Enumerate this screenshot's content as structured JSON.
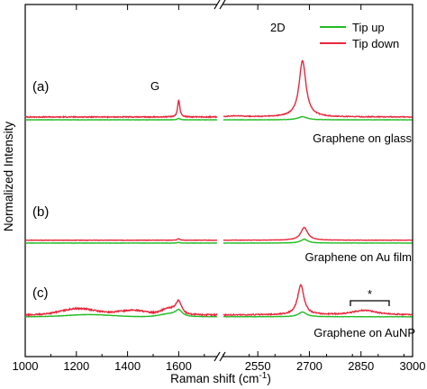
{
  "chart_data": {
    "type": "line",
    "xlabel": "Raman shift (cm",
    "xlabel_sup": "-1",
    "xlabel_tail": ")",
    "ylabel": "Normalized Intensity",
    "axis_break": true,
    "x_segments": [
      {
        "range": [
          1000,
          1750
        ],
        "ticks": [
          1000,
          1200,
          1400,
          1600
        ]
      },
      {
        "range": [
          2450,
          3000
        ],
        "ticks": [
          2550,
          2700,
          2850,
          3000
        ]
      }
    ],
    "x_tick_labels": [
      "1000",
      "1200",
      "1400",
      "1600",
      "2550",
      "2700",
      "2850",
      "3000"
    ],
    "y_ticks": "none",
    "legend": {
      "placement": "top-right",
      "entries": [
        {
          "name": "Tip up",
          "color": "#22bb22"
        },
        {
          "name": "Tip down",
          "color": "#e8283c"
        }
      ]
    },
    "peak_labels": {
      "G": "G",
      "2D": "2D",
      "star": "*"
    },
    "panels": [
      {
        "id": "a",
        "label": "(a)",
        "caption": "Graphene on glass",
        "baseline_red": 0.64,
        "baseline_green": 0.31,
        "noise_red": 0.05,
        "red_peaks": [
          {
            "center": 1600,
            "height": 2.0,
            "width": 5
          },
          {
            "center": 2680,
            "height": 6.6,
            "width": 12
          },
          {
            "center": 2490,
            "height": 0.12,
            "width": 30
          }
        ],
        "green_peaks": [
          {
            "center": 1600,
            "height": 0.16,
            "width": 6
          },
          {
            "center": 2680,
            "height": 0.36,
            "width": 16
          }
        ]
      },
      {
        "id": "b",
        "label": "(b)",
        "caption": "Graphene on Au film",
        "baseline_red": 0.55,
        "baseline_green": 0.22,
        "noise_red": 0.02,
        "red_peaks": [
          {
            "center": 1600,
            "height": 0.16,
            "width": 6
          },
          {
            "center": 2685,
            "height": 1.5,
            "width": 12
          }
        ],
        "green_peaks": [
          {
            "center": 1600,
            "height": 0.06,
            "width": 6
          },
          {
            "center": 2685,
            "height": 0.45,
            "width": 12
          }
        ]
      },
      {
        "id": "c",
        "label": "(c)",
        "caption": "Graphene on AuNP",
        "baseline_red": 0.55,
        "baseline_green": 0.34,
        "noise_red": 0.07,
        "red_broad": [
          {
            "center": 1210,
            "height": 0.75,
            "width": 100
          },
          {
            "center": 1420,
            "height": 0.55,
            "width": 80
          },
          {
            "center": 1560,
            "height": 0.65,
            "width": 40
          }
        ],
        "red_peaks": [
          {
            "center": 1600,
            "height": 1.45,
            "width": 14
          },
          {
            "center": 2675,
            "height": 3.5,
            "width": 11
          },
          {
            "center": 2860,
            "height": 0.55,
            "width": 40
          }
        ],
        "green_broad": [
          {
            "center": 1250,
            "height": 0.25,
            "width": 120
          },
          {
            "center": 1560,
            "height": 0.3,
            "width": 50
          }
        ],
        "green_peaks": [
          {
            "center": 1600,
            "height": 0.7,
            "width": 16
          },
          {
            "center": 2680,
            "height": 0.55,
            "width": 14
          }
        ]
      }
    ]
  }
}
